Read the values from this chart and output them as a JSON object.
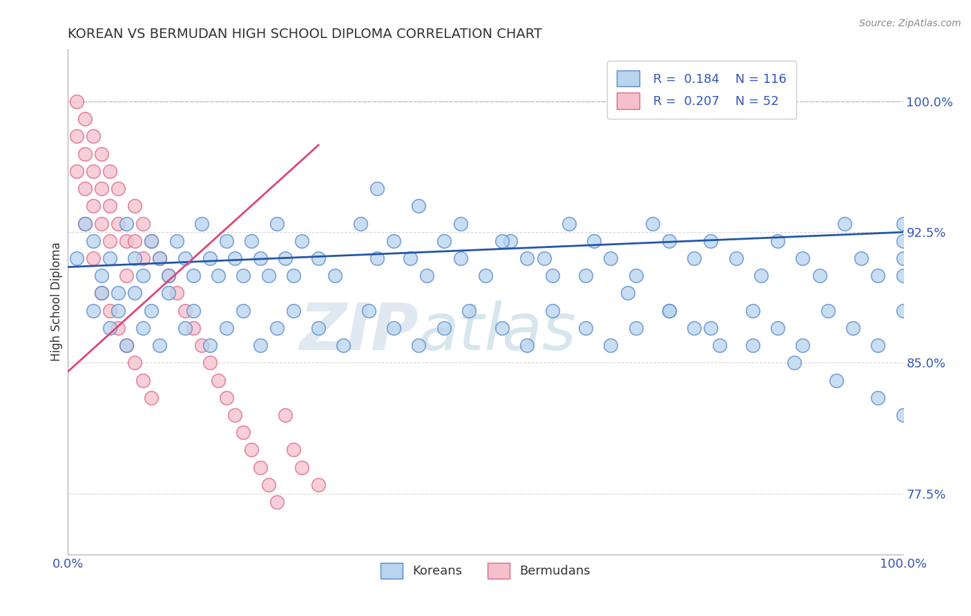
{
  "title": "KOREAN VS BERMUDAN HIGH SCHOOL DIPLOMA CORRELATION CHART",
  "ylabel": "High School Diploma",
  "source_text": "Source: ZipAtlas.com",
  "watermark_zip": "ZIP",
  "watermark_atlas": "atlas",
  "xlim": [
    0,
    100
  ],
  "ylim": [
    74,
    103
  ],
  "yticks": [
    77.5,
    85.0,
    92.5,
    100.0
  ],
  "xtick_labels": [
    "0.0%",
    "100.0%"
  ],
  "ytick_labels": [
    "77.5%",
    "85.0%",
    "92.5%",
    "100.0%"
  ],
  "legend_r_korean": "0.184",
  "legend_n_korean": "116",
  "legend_r_bermudan": "0.207",
  "legend_n_bermudan": "52",
  "korean_color": "#b8d4ee",
  "korean_edge_color": "#5588cc",
  "bermudan_color": "#f5c0cc",
  "bermudan_edge_color": "#dd6688",
  "trend_korean_color": "#2255aa",
  "trend_bermudan_color": "#dd4477",
  "title_color": "#333333",
  "axis_label_color": "#3355bb",
  "background_color": "#ffffff",
  "korean_scatter_x": [
    1,
    2,
    3,
    4,
    5,
    6,
    7,
    8,
    9,
    10,
    11,
    12,
    13,
    14,
    15,
    16,
    17,
    18,
    19,
    20,
    21,
    22,
    23,
    24,
    25,
    26,
    27,
    28,
    30,
    32,
    35,
    37,
    39,
    41,
    43,
    45,
    47,
    50,
    53,
    55,
    58,
    60,
    63,
    65,
    68,
    70,
    72,
    75,
    77,
    80,
    83,
    85,
    88,
    90,
    93,
    95,
    97,
    100,
    3,
    4,
    5,
    6,
    7,
    8,
    9,
    10,
    11,
    12,
    14,
    15,
    17,
    19,
    21,
    23,
    25,
    27,
    30,
    33,
    36,
    39,
    42,
    45,
    48,
    52,
    55,
    58,
    62,
    65,
    68,
    72,
    75,
    78,
    82,
    85,
    88,
    91,
    94,
    97,
    100,
    37,
    42,
    47,
    52,
    57,
    62,
    67,
    72,
    77,
    82,
    87,
    92,
    97,
    100,
    100,
    100,
    100
  ],
  "korean_scatter_y": [
    91,
    93,
    92,
    90,
    91,
    89,
    93,
    91,
    90,
    92,
    91,
    90,
    92,
    91,
    90,
    93,
    91,
    90,
    92,
    91,
    90,
    92,
    91,
    90,
    93,
    91,
    90,
    92,
    91,
    90,
    93,
    91,
    92,
    91,
    90,
    92,
    91,
    90,
    92,
    91,
    90,
    93,
    92,
    91,
    90,
    93,
    92,
    91,
    92,
    91,
    90,
    92,
    91,
    90,
    93,
    91,
    90,
    93,
    88,
    89,
    87,
    88,
    86,
    89,
    87,
    88,
    86,
    89,
    87,
    88,
    86,
    87,
    88,
    86,
    87,
    88,
    87,
    86,
    88,
    87,
    86,
    87,
    88,
    87,
    86,
    88,
    87,
    86,
    87,
    88,
    87,
    86,
    88,
    87,
    86,
    88,
    87,
    86,
    88,
    95,
    94,
    93,
    92,
    91,
    90,
    89,
    88,
    87,
    86,
    85,
    84,
    83,
    82,
    92,
    91,
    90
  ],
  "bermudan_scatter_x": [
    1,
    1,
    2,
    2,
    2,
    3,
    3,
    3,
    4,
    4,
    4,
    5,
    5,
    5,
    6,
    6,
    7,
    7,
    8,
    8,
    9,
    9,
    10,
    11,
    12,
    13,
    14,
    15,
    16,
    17,
    18,
    19,
    20,
    21,
    22,
    23,
    24,
    25,
    26,
    27,
    28,
    30,
    1,
    2,
    3,
    4,
    5,
    6,
    7,
    8,
    9,
    10
  ],
  "bermudan_scatter_y": [
    100,
    98,
    99,
    97,
    95,
    98,
    96,
    94,
    97,
    95,
    93,
    96,
    94,
    92,
    95,
    93,
    92,
    90,
    94,
    92,
    91,
    93,
    92,
    91,
    90,
    89,
    88,
    87,
    86,
    85,
    84,
    83,
    82,
    81,
    80,
    79,
    78,
    77,
    82,
    80,
    79,
    78,
    96,
    93,
    91,
    89,
    88,
    87,
    86,
    85,
    84,
    83
  ],
  "trend_korean_x0": 0,
  "trend_korean_y0": 90.5,
  "trend_korean_x1": 100,
  "trend_korean_y1": 92.5,
  "trend_bermudan_x0": 0,
  "trend_bermudan_y0": 84.5,
  "trend_bermudan_x1": 30,
  "trend_bermudan_y1": 97.5
}
